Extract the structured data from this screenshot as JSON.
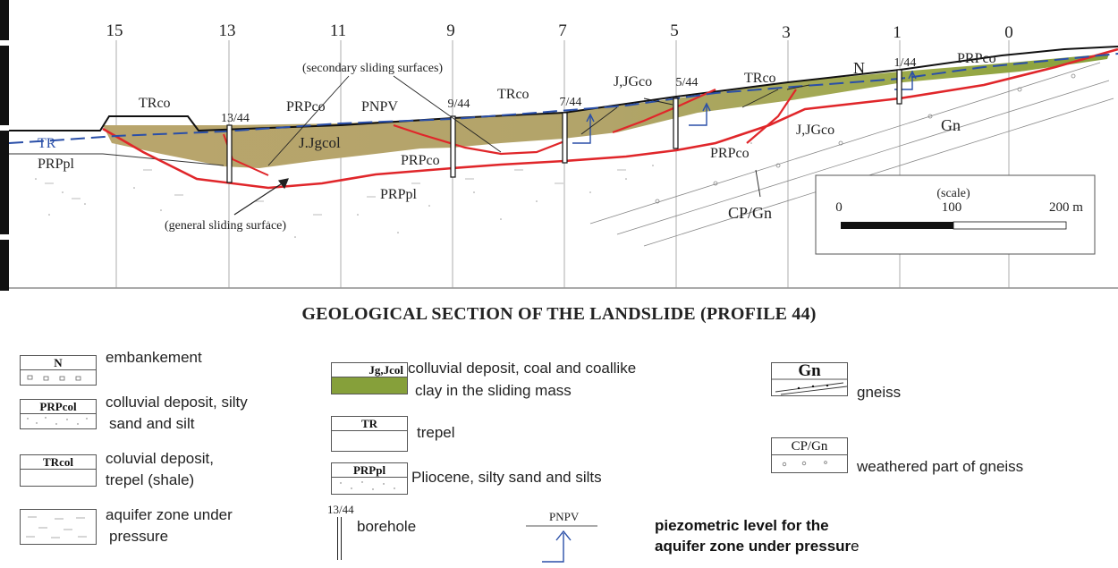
{
  "section": {
    "profile_numbers": [
      "15",
      "13",
      "11",
      "9",
      "7",
      "5",
      "3",
      "1",
      "0"
    ],
    "boreholes": [
      "13/44",
      "9/44",
      "7/44",
      "5/44",
      "1/44"
    ],
    "units": {
      "tr": "TR",
      "prppl_left": "PRPpl",
      "trco_left": "TRco",
      "prpco_top": "PRPco",
      "pnpv": "PNPV",
      "jjgcol": "J.Jgcol",
      "prpco_mid": "PRPco",
      "prppl_mid": "PRPpl",
      "trco_mid": "TRco",
      "jjgco_top": "J,JGco",
      "trco_right": "TRco",
      "n": "N",
      "prpco_right": "PRPco",
      "jjgco_right": "J,JGco",
      "gn": "Gn",
      "prpco_low": "PRPco",
      "cpgn": "CP/Gn"
    },
    "annotations": {
      "secondary": "(secondary sliding surfaces)",
      "general": "(general sliding surface)"
    },
    "scale": {
      "title": "(scale)",
      "start": "0",
      "mid": "100",
      "end": "200 m"
    }
  },
  "title": "GEOLOGICAL SECTION OF THE LANDSLIDE (PROFILE 44)",
  "legend": {
    "n": {
      "code": "N",
      "label": "embankement"
    },
    "prpcol": {
      "code": "PRPcol",
      "label_1": "colluvial deposit, silty",
      "label_2": "sand and silt"
    },
    "trcol": {
      "code": "TRcol",
      "label_1": "coluvial deposit,",
      "label_2": "trepel (shale)"
    },
    "aquifer": {
      "label_1": "aquifer zone under",
      "label_2": "pressure"
    },
    "jg": {
      "code": "Jg,Jcol",
      "label_1": "colluvial deposit, coal and coallike",
      "label_2": "clay  in the sliding mass"
    },
    "tr": {
      "code": "TR",
      "label": "trepel"
    },
    "prppl": {
      "code": "PRPpl",
      "label": "Pliocene, silty sand and silts"
    },
    "borehole": {
      "code": "13/44",
      "label": "borehole"
    },
    "pnpv": {
      "code": "PNPV",
      "label_1": "piezometric level for the",
      "label_2": "aquifer zone under pressur",
      "label_2_tail": "e"
    },
    "gn": {
      "code": "Gn",
      "label": "gneiss"
    },
    "cpgn": {
      "code": "CP/Gn",
      "label": "weathered part of gneiss"
    }
  },
  "colors": {
    "sliding_mass": "#8a9a3a",
    "sliding_mass_light": "#b7a66a",
    "general_surface": "#e0262a",
    "piezometric": "#2a4fa8",
    "ground": "#111111"
  }
}
